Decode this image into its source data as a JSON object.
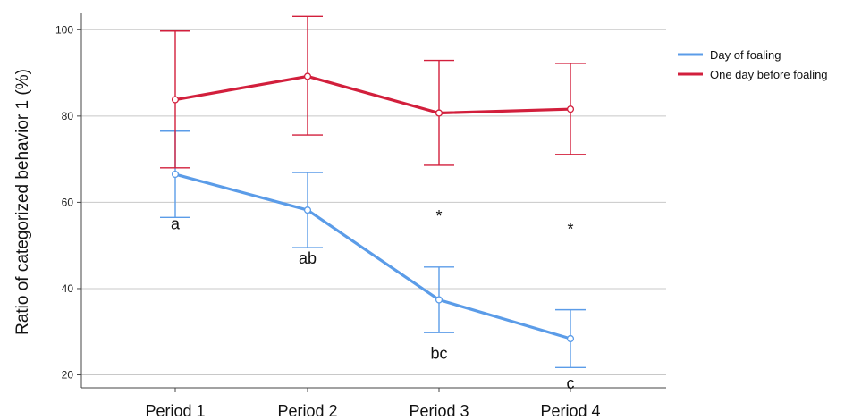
{
  "chart_data": {
    "type": "line",
    "ylabel": "Ratio of categorized behavior 1 (%)",
    "xlabel": "",
    "categories": [
      "Period 1",
      "Period 2",
      "Period 3",
      "Period 4"
    ],
    "ylim": [
      17,
      104
    ],
    "yticks": [
      20,
      40,
      60,
      80,
      100
    ],
    "grid": true,
    "legend_position": "top-right",
    "series": [
      {
        "name": "Day of foaling",
        "color": "#5b9ce8",
        "values": [
          66.5,
          58.2,
          37.4,
          28.4
        ],
        "error_low": [
          56.5,
          49.5,
          29.8,
          21.7
        ],
        "error_high": [
          76.5,
          66.9,
          45.0,
          35.1
        ]
      },
      {
        "name": "One day before foaling",
        "color": "#d21f3c",
        "values": [
          83.8,
          89.2,
          80.7,
          81.6
        ],
        "error_low": [
          68.0,
          75.6,
          68.6,
          71.1
        ],
        "error_high": [
          99.7,
          103.1,
          92.9,
          92.2
        ]
      }
    ],
    "annotations": [
      {
        "text": "a",
        "category": 0,
        "y": 55.0
      },
      {
        "text": "ab",
        "category": 1,
        "y": 47.0
      },
      {
        "text": "bc",
        "category": 2,
        "y": 25.0
      },
      {
        "text": "c",
        "category": 3,
        "y": 18.0
      },
      {
        "text": "*",
        "category": 2,
        "y": 55.5
      },
      {
        "text": "*",
        "category": 3,
        "y": 52.5
      }
    ]
  }
}
